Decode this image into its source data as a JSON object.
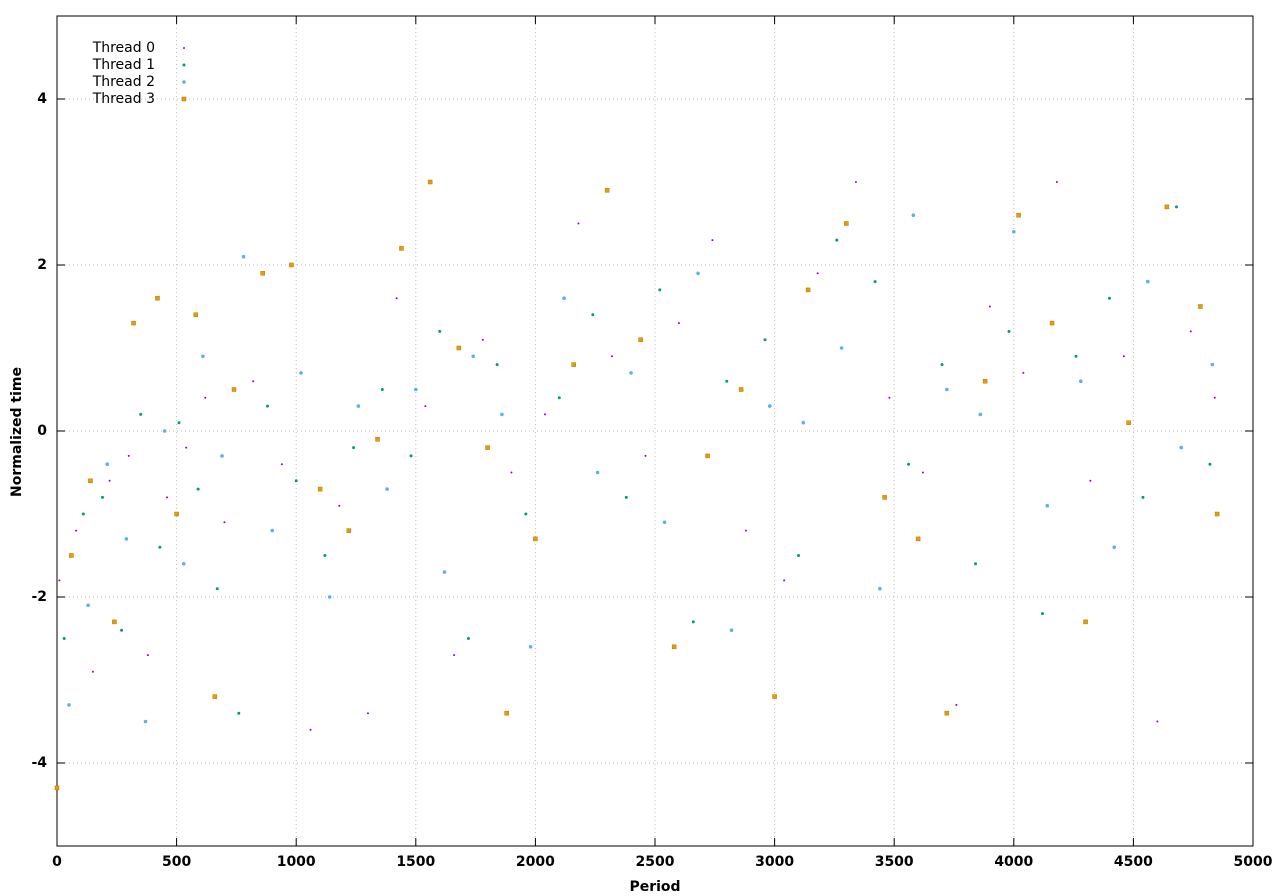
{
  "chart_data": {
    "type": "scatter",
    "xlabel": "Period",
    "ylabel": "Normalized time",
    "xlim": [
      0,
      5000
    ],
    "ylim": [
      -5,
      5
    ],
    "xticks": [
      0,
      500,
      1000,
      1500,
      2000,
      2500,
      3000,
      3500,
      4000,
      4500,
      5000
    ],
    "yticks": [
      -4,
      -2,
      0,
      2,
      4
    ],
    "grid": true,
    "legend": "upper left",
    "series": [
      {
        "name": "Thread 0",
        "color": "#9400d3",
        "x": [
          10,
          80,
          150,
          220,
          300,
          380,
          460,
          540,
          620,
          700,
          820,
          940,
          1060,
          1180,
          1300,
          1420,
          1540,
          1660,
          1780,
          1900,
          2040,
          2180,
          2320,
          2460,
          2600,
          2740,
          2880,
          3040,
          3180,
          3340,
          3480,
          3620,
          3760,
          3900,
          4040,
          4180,
          4320,
          4460,
          4600,
          4740,
          4840
        ],
        "values": [
          -1.8,
          -1.2,
          -2.9,
          -0.6,
          -0.3,
          -2.7,
          -0.8,
          -0.2,
          0.4,
          -1.1,
          0.6,
          -0.4,
          -3.6,
          -0.9,
          -3.4,
          1.6,
          0.3,
          -2.7,
          1.1,
          -0.5,
          0.2,
          2.5,
          0.9,
          -0.3,
          1.3,
          2.3,
          -1.2,
          -1.8,
          1.9,
          3.0,
          0.4,
          -0.5,
          -3.3,
          1.5,
          0.7,
          3.0,
          -0.6,
          0.9,
          -3.5,
          1.2,
          0.4
        ]
      },
      {
        "name": "Thread 1",
        "color": "#009e73",
        "x": [
          30,
          110,
          190,
          270,
          350,
          430,
          510,
          590,
          670,
          760,
          880,
          1000,
          1120,
          1240,
          1360,
          1480,
          1600,
          1720,
          1840,
          1960,
          2100,
          2240,
          2380,
          2520,
          2660,
          2800,
          2960,
          3100,
          3260,
          3420,
          3560,
          3700,
          3840,
          3980,
          4120,
          4260,
          4400,
          4540,
          4680,
          4820
        ],
        "values": [
          -2.5,
          -1.0,
          -0.8,
          -2.4,
          0.2,
          -1.4,
          0.1,
          -0.7,
          -1.9,
          -3.4,
          0.3,
          -0.6,
          -1.5,
          -0.2,
          0.5,
          -0.3,
          1.2,
          -2.5,
          0.8,
          -1.0,
          0.4,
          1.4,
          -0.8,
          1.7,
          -2.3,
          0.6,
          1.1,
          -1.5,
          2.3,
          1.8,
          -0.4,
          0.8,
          -1.6,
          1.2,
          -2.2,
          0.9,
          1.6,
          -0.8,
          2.7,
          -0.4
        ]
      },
      {
        "name": "Thread 2",
        "color": "#56b4e9",
        "x": [
          50,
          130,
          210,
          290,
          370,
          450,
          530,
          610,
          690,
          780,
          900,
          1020,
          1140,
          1260,
          1380,
          1500,
          1620,
          1740,
          1860,
          1980,
          2120,
          2260,
          2400,
          2540,
          2680,
          2820,
          2980,
          3120,
          3280,
          3440,
          3580,
          3720,
          3860,
          4000,
          4140,
          4280,
          4420,
          4560,
          4700,
          4830
        ],
        "values": [
          -3.3,
          -2.1,
          -0.4,
          -1.3,
          -3.5,
          0.0,
          -1.6,
          0.9,
          -0.3,
          2.1,
          -1.2,
          0.7,
          -2.0,
          0.3,
          -0.7,
          0.5,
          -1.7,
          0.9,
          0.2,
          -2.6,
          1.6,
          -0.5,
          0.7,
          -1.1,
          1.9,
          -2.4,
          0.3,
          0.1,
          1.0,
          -1.9,
          2.6,
          0.5,
          0.2,
          2.4,
          -0.9,
          0.6,
          -1.4,
          1.8,
          -0.2,
          0.8
        ]
      },
      {
        "name": "Thread 3",
        "color": "#e69f00",
        "x": [
          0,
          60,
          140,
          240,
          320,
          420,
          500,
          580,
          660,
          740,
          860,
          980,
          1100,
          1220,
          1340,
          1440,
          1560,
          1680,
          1800,
          1880,
          2000,
          2160,
          2300,
          2440,
          2580,
          2720,
          2860,
          3000,
          3140,
          3300,
          3460,
          3600,
          3720,
          3880,
          4020,
          4160,
          4300,
          4480,
          4640,
          4780,
          4850
        ],
        "values": [
          -4.3,
          -1.5,
          -0.6,
          -2.3,
          1.3,
          1.6,
          -1.0,
          1.4,
          -3.2,
          0.5,
          1.9,
          2.0,
          -0.7,
          -1.2,
          -0.1,
          2.2,
          3.0,
          1.0,
          -0.2,
          -3.4,
          -1.3,
          0.8,
          2.9,
          1.1,
          -2.6,
          -0.3,
          0.5,
          -3.2,
          1.7,
          2.5,
          -0.8,
          -1.3,
          -3.4,
          0.6,
          2.6,
          1.3,
          -2.3,
          0.1,
          2.7,
          1.5,
          -1.0
        ]
      }
    ]
  }
}
